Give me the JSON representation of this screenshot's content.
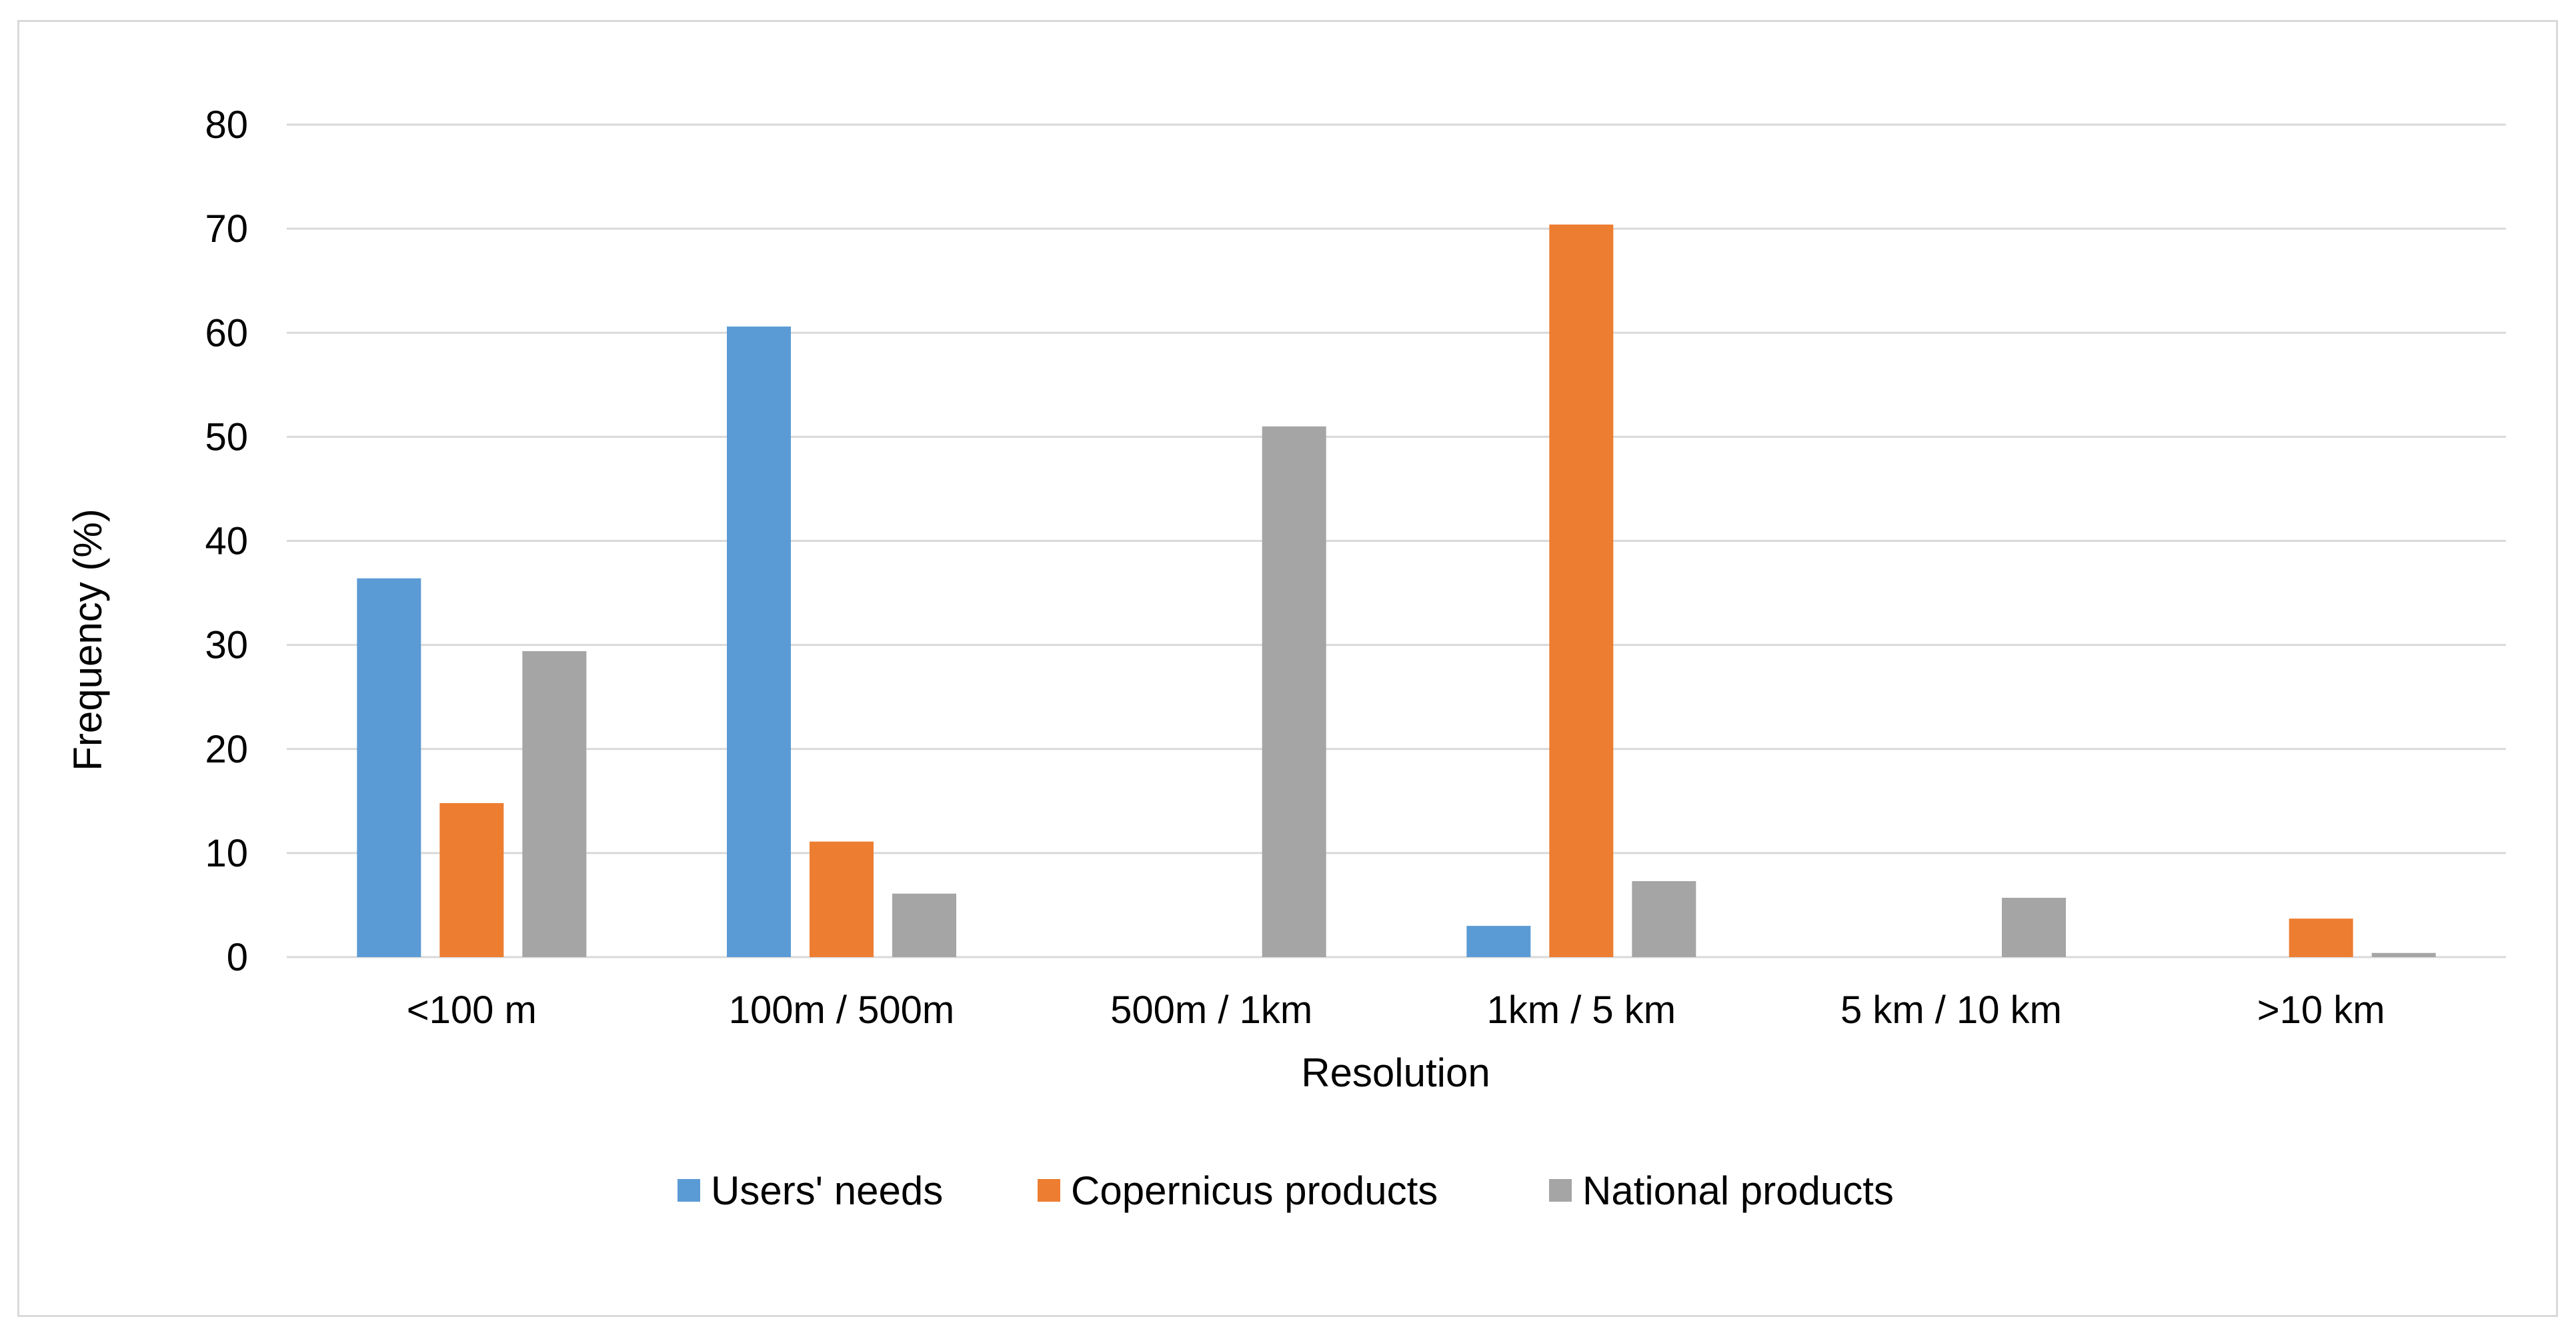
{
  "chart_data": {
    "type": "bar",
    "title": "",
    "xlabel": "Resolution",
    "ylabel": "Frequency (%)",
    "ylim": [
      0,
      80
    ],
    "yticks": [
      0,
      10,
      20,
      30,
      40,
      50,
      60,
      70,
      80
    ],
    "grid": true,
    "legend_position": "bottom",
    "categories": [
      "<100 m",
      "100m / 500m",
      "500m / 1km",
      "1km / 5 km",
      "5 km / 10 km",
      ">10 km"
    ],
    "series": [
      {
        "name": "Users' needs",
        "color": "#5b9bd5",
        "values": [
          36.4,
          60.6,
          0,
          3.0,
          0,
          0
        ]
      },
      {
        "name": "Copernicus products",
        "color": "#ed7d31",
        "values": [
          14.8,
          11.1,
          0,
          70.4,
          0,
          3.7
        ]
      },
      {
        "name": "National products",
        "color": "#a5a5a5",
        "values": [
          29.4,
          6.1,
          51.0,
          7.3,
          5.7,
          0.4
        ]
      }
    ],
    "gridline_color": "#d9d9d9"
  }
}
